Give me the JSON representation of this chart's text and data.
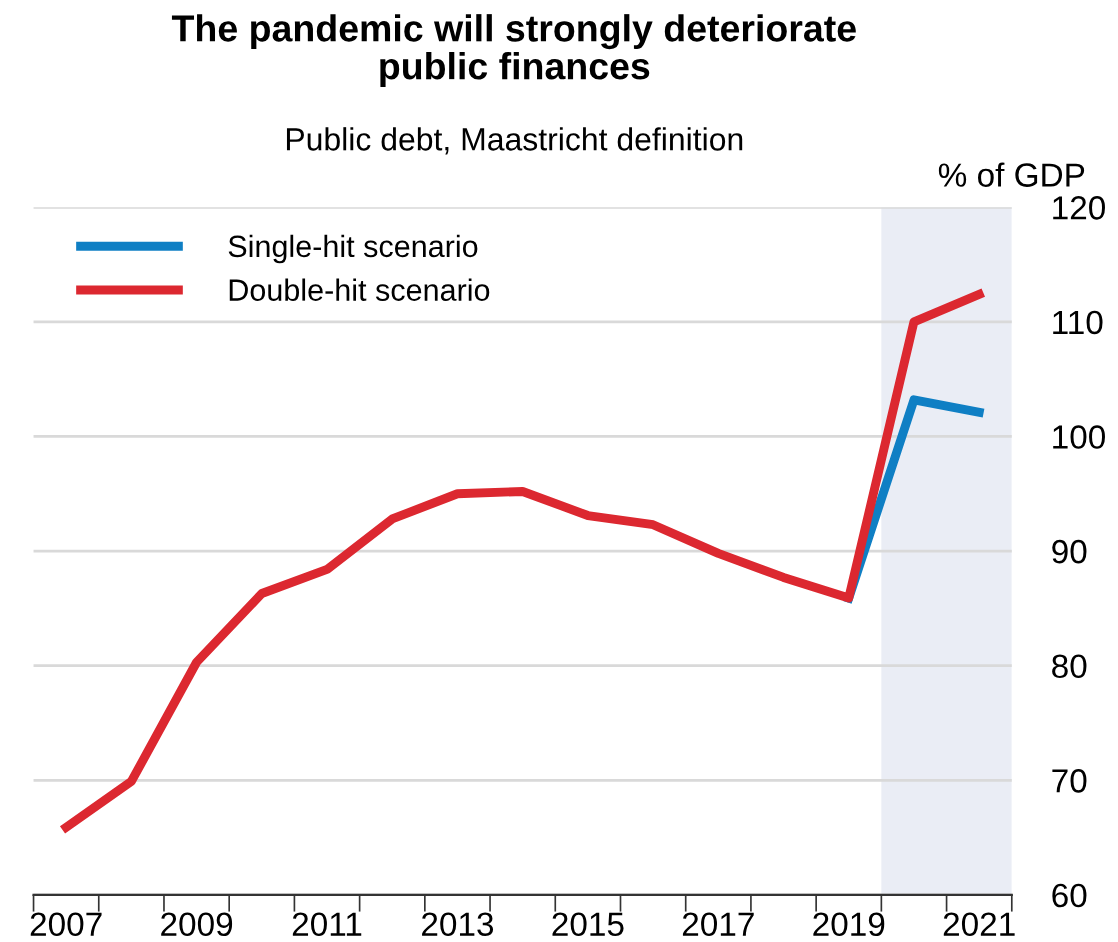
{
  "chart_data": {
    "type": "line",
    "title": "The pandemic will strongly deteriorate\npublic finances",
    "subtitle": "Public debt, Maastricht definition",
    "ylabel": "% of GDP",
    "x": [
      2007,
      2008,
      2009,
      2010,
      2011,
      2012,
      2013,
      2014,
      2015,
      2016,
      2017,
      2018,
      2019,
      2020,
      2021
    ],
    "series": [
      {
        "name": "Single-hit scenario",
        "color": "#0f7fc4",
        "values": [
          null,
          null,
          null,
          null,
          null,
          null,
          null,
          null,
          null,
          null,
          null,
          null,
          85.9,
          103.2,
          102.1
        ]
      },
      {
        "name": "Double-hit scenario",
        "color": "#dc2830",
        "values": [
          65.9,
          69.9,
          80.3,
          86.3,
          88.4,
          92.8,
          95.0,
          95.2,
          93.1,
          92.3,
          89.8,
          87.7,
          85.9,
          110.0,
          112.4
        ]
      }
    ],
    "xlim": [
      2006.5,
      2021.5
    ],
    "xticks": [
      {
        "value": 2006.5,
        "label": null
      },
      2007,
      {
        "value": 2007.5,
        "label": null
      },
      {
        "value": 2008.5,
        "label": null
      },
      2009,
      {
        "value": 2009.5,
        "label": null
      },
      {
        "value": 2010.5,
        "label": null
      },
      2011,
      {
        "value": 2011.5,
        "label": null
      },
      {
        "value": 2012.5,
        "label": null
      },
      2013,
      {
        "value": 2013.5,
        "label": null
      },
      {
        "value": 2014.5,
        "label": null
      },
      2015,
      {
        "value": 2015.5,
        "label": null
      },
      {
        "value": 2016.5,
        "label": null
      },
      2017,
      {
        "value": 2017.5,
        "label": null
      },
      {
        "value": 2018.5,
        "label": null
      },
      2019,
      {
        "value": 2019.5,
        "label": null
      },
      {
        "value": 2020.5,
        "label": null
      },
      2021,
      {
        "value": 2021.5,
        "label": null
      }
    ],
    "ylim": [
      60,
      120
    ],
    "yticks": [
      60,
      70,
      80,
      90,
      100,
      110,
      120
    ],
    "bands": [
      {
        "axis": "x",
        "from": 2019.5,
        "to": 2021.5,
        "color": "#eaedf5"
      }
    ],
    "grid": "y",
    "legend": "top left",
    "marker": "none",
    "line_style": "solid"
  }
}
